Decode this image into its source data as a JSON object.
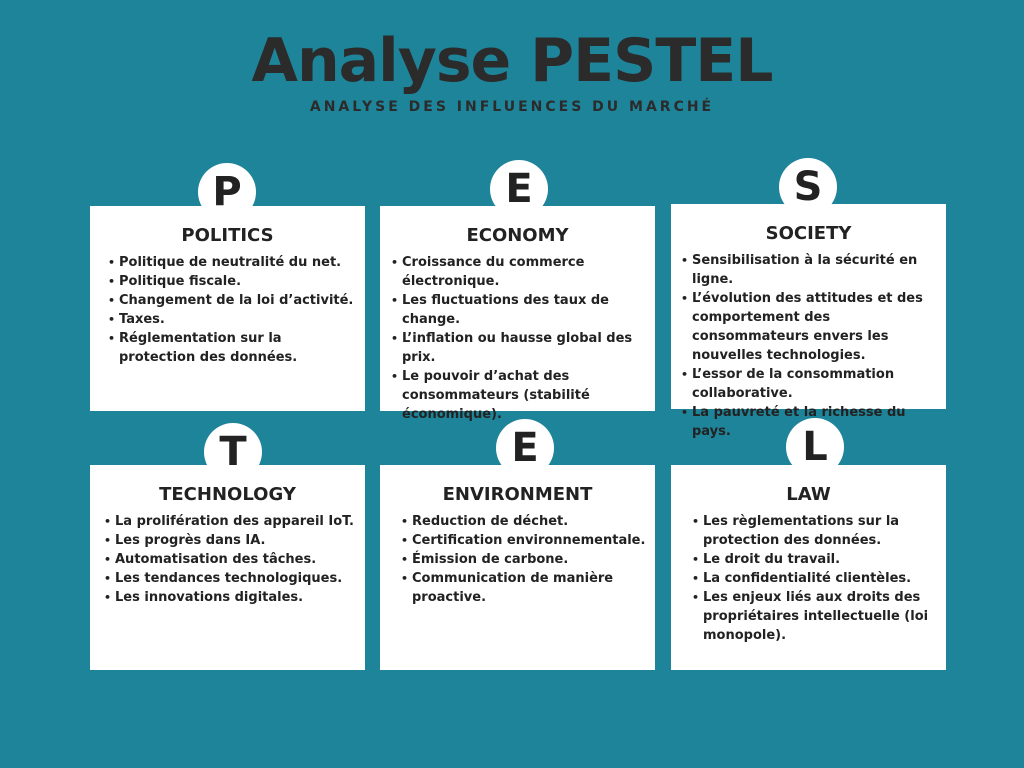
{
  "header": {
    "title": "Analyse PESTEL",
    "subtitle": "ANALYSE DES INFLUENCES DU MARCHÉ"
  },
  "factors": [
    {
      "letter": "P",
      "title": "POLITICS",
      "items": [
        "Politique de neutralité du net.",
        "Politique fiscale.",
        "Changement de la loi d’activité.",
        "Taxes.",
        "Réglementation sur la protection des données."
      ]
    },
    {
      "letter": "E",
      "title": "ECONOMY",
      "items": [
        "Croissance du commerce électronique.",
        "Les fluctuations des taux de change.",
        "L’inflation ou hausse global des prix.",
        "Le pouvoir d’achat des consommateurs (stabilité économique)."
      ]
    },
    {
      "letter": "S",
      "title": "SOCIETY",
      "items": [
        "Sensibilisation à la sécurité en ligne.",
        "L’évolution des attitudes et des comportement des consommateurs envers les nouvelles technologies.",
        "L’essor de la consommation collaborative.",
        "La pauvreté et la richesse du pays."
      ]
    },
    {
      "letter": "T",
      "title": "TECHNOLOGY",
      "items": [
        "La prolifération des appareil IoT.",
        "Les progrès dans IA.",
        "Automatisation des tâches.",
        "Les tendances technologiques.",
        "Les innovations digitales."
      ]
    },
    {
      "letter": "E",
      "title": "ENVIRONMENT",
      "items": [
        "Reduction de déchet.",
        "Certification environnementale.",
        "Émission de carbone.",
        "Communication de manière proactive."
      ]
    },
    {
      "letter": "L",
      "title": "LAW",
      "items": [
        "Les règlementations sur la protection des données.",
        "Le droit du travail.",
        "La confidentialité clientèles.",
        "Les enjeux liés aux droits des propriétaires intellectuelle (loi monopole)."
      ]
    }
  ]
}
